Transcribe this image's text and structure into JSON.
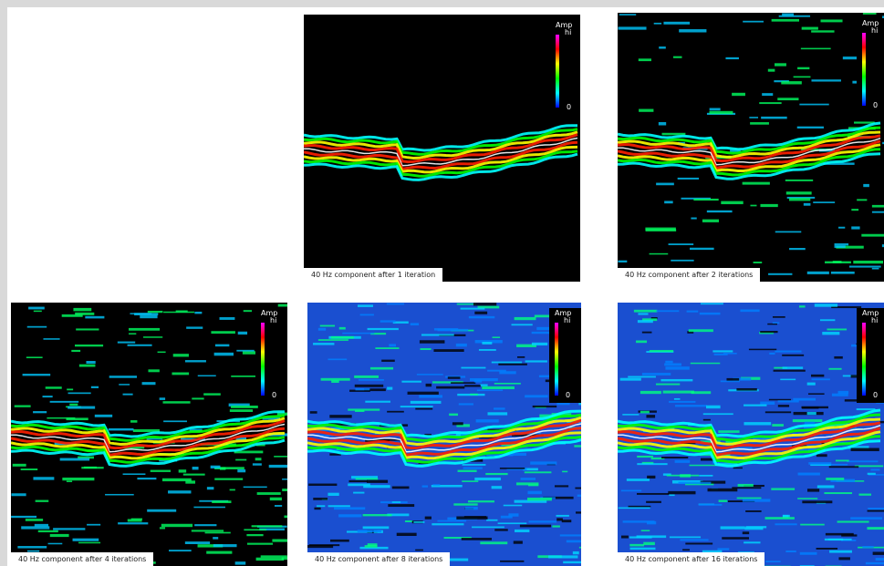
{
  "panels": [
    {
      "caption": "40 Hz component after 1 iteration",
      "colorbar": {
        "label": "Amp",
        "high": "hi",
        "low": "0"
      }
    },
    {
      "caption": "40 Hz component after 2 iterations",
      "colorbar": {
        "label": "Amp",
        "high": "hi",
        "low": "0"
      }
    },
    {
      "caption": "40 Hz component after 4 iterations",
      "colorbar": {
        "label": "Amp",
        "high": "hi",
        "low": "0"
      }
    },
    {
      "caption": "40 Hz component after 8 iterations",
      "colorbar": {
        "label": "Amp",
        "high": "hi",
        "low": "0"
      }
    },
    {
      "caption": "40 Hz component after 16 iterations",
      "colorbar": {
        "label": "Amp",
        "high": "hi",
        "low": "0"
      }
    }
  ]
}
